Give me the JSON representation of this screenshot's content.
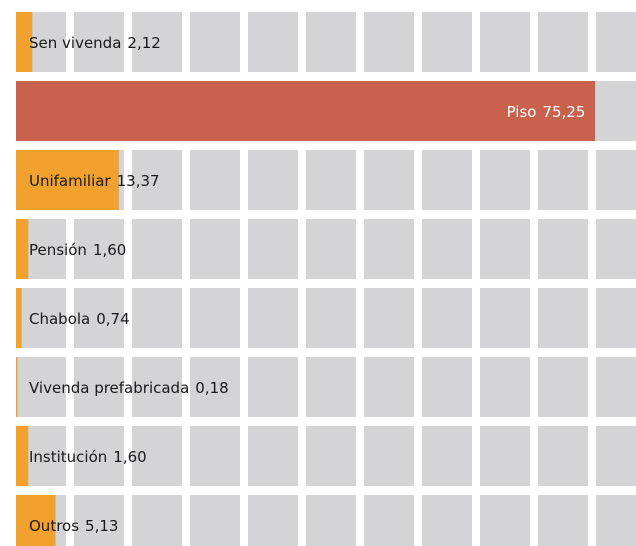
{
  "chart_data": {
    "type": "bar",
    "orientation": "horizontal",
    "categories": [
      "Sen vivenda",
      "Piso",
      "Unifamiliar",
      "Pensión",
      "Chabola",
      "Vivenda prefabricada",
      "Institución",
      "Outros"
    ],
    "values": [
      2.12,
      75.25,
      13.37,
      1.6,
      0.74,
      0.18,
      1.6,
      5.13
    ],
    "value_labels": [
      "2,12",
      "75,25",
      "13,37",
      "1,60",
      "0,74",
      "0,18",
      "1,60",
      "5,13"
    ],
    "colors": [
      "#f0a12e",
      "#c9624d",
      "#f0a12e",
      "#f0a12e",
      "#f0a12e",
      "#f0a12e",
      "#f0a12e",
      "#f0a12e"
    ],
    "xlim": [
      0,
      80
    ]
  }
}
